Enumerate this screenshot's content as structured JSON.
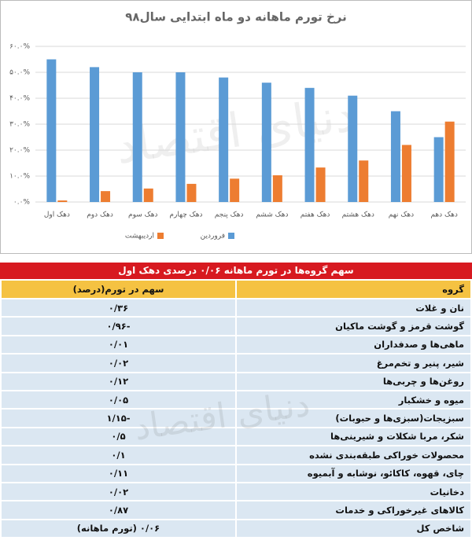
{
  "chart_data": {
    "type": "bar",
    "title": "نرخ تورم ماهانه دو ماه ابتدایی سال۹۸",
    "watermark": "دنیای اقتصاد",
    "categories": [
      "دهک اول",
      "دهک دوم",
      "دهک سوم",
      "دهک چهارم",
      "دهک پنجم",
      "دهک ششم",
      "دهک هفتم",
      "دهک هشتم",
      "دهک نهم",
      "دهک دهم"
    ],
    "series": [
      {
        "name": "فروردین",
        "color": "#5b9bd5",
        "values": [
          55,
          52,
          50,
          50,
          48,
          46,
          44,
          41,
          35,
          25
        ]
      },
      {
        "name": "اردیبهشت",
        "color": "#ed7d31",
        "values": [
          0.6,
          4.2,
          5.2,
          7,
          9,
          10.3,
          13.3,
          16,
          22,
          31
        ]
      }
    ],
    "ylim": [
      0,
      60
    ],
    "yticks": [
      {
        "value": 0,
        "label": "۰.۰%"
      },
      {
        "value": 10,
        "label": "۱۰.۰%"
      },
      {
        "value": 20,
        "label": "۲۰.۰%"
      },
      {
        "value": 30,
        "label": "۳۰.۰%"
      },
      {
        "value": 40,
        "label": "۴۰.۰%"
      },
      {
        "value": 50,
        "label": "۵۰.۰%"
      },
      {
        "value": 60,
        "label": "۶۰.۰%"
      }
    ],
    "grid": true,
    "legend": "bottom"
  },
  "table": {
    "title": "سهم گروه‌ها در تورم ماهانه ۰/۰۶ درصدی دهک اول",
    "watermark": "دنیای اقتصاد",
    "headers": [
      "گروه",
      "سهم در تورم(درصد)"
    ],
    "rows": [
      [
        "نان و غلات",
        "۰/۳۶"
      ],
      [
        "گوشت قرمز و گوشت ماکیان",
        "-۰/۹۶"
      ],
      [
        "ماهی‌ها و صدفداران",
        "۰/۰۱"
      ],
      [
        "شیر، پنیر و تخم‌مرغ",
        "۰/۰۲"
      ],
      [
        "روغن‌ها و چربی‌ها",
        "۰/۱۲"
      ],
      [
        "میوه و خشکبار",
        "۰/۰۵"
      ],
      [
        "سبزیجات(سبزی‌ها و حبوبات)",
        "-۱/۱۵"
      ],
      [
        "شکر، مربا شکلات و شیرینی‌ها",
        "۰/۵"
      ],
      [
        "محصولات خوراکی طبقه‌بندی نشده",
        "۰/۱"
      ],
      [
        "چای، قهوه، کاکائو، نوشابه و آبمیوه",
        "۰/۱۱"
      ],
      [
        "دخانیات",
        "۰/۰۲"
      ],
      [
        "کالاهای غیرخوراکی و خدمات",
        "۰/۸۷"
      ],
      [
        "شاخص کل",
        "۰/۰۶ (تورم ماهانه)"
      ]
    ]
  }
}
